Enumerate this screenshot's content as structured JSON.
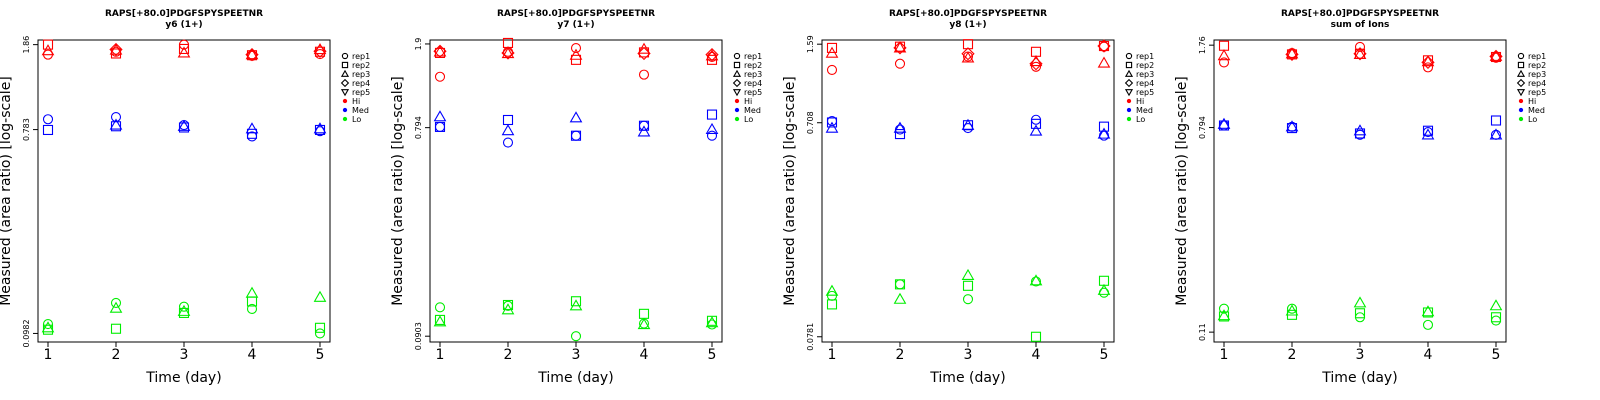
{
  "colors": {
    "Hi": "#ff0000",
    "Med": "#0000ff",
    "Lo": "#00ee00"
  },
  "legend": [
    {
      "label": "rep1",
      "shape": "circle"
    },
    {
      "label": "rep2",
      "shape": "square"
    },
    {
      "label": "rep3",
      "shape": "triangle-up"
    },
    {
      "label": "rep4",
      "shape": "diamond"
    },
    {
      "label": "rep5",
      "shape": "triangle-down"
    },
    {
      "label": "Hi",
      "shape": "dot",
      "color": "#ff0000"
    },
    {
      "label": "Med",
      "shape": "dot",
      "color": "#0000ff"
    },
    {
      "label": "Lo",
      "shape": "dot",
      "color": "#00ee00"
    }
  ],
  "chart_data": [
    {
      "type": "scatter",
      "title": "RAPS[+80.0]PDGFSPYSPEETNR",
      "subtitle": "y6 (1+)",
      "xlabel": "Time (day)",
      "ylabel": "Measured (area ratio) [log-scale]",
      "log_y": true,
      "x_ticks": [
        1,
        2,
        3,
        4,
        5
      ],
      "y_ticks": [
        {
          "value": 0.0982,
          "label": "0.0982"
        },
        {
          "value": 0.783,
          "label": "0.783"
        },
        {
          "value": 1.86,
          "label": "1.86"
        }
      ],
      "ylim": [
        0.09,
        1.95
      ],
      "x": [
        1,
        2,
        3,
        4,
        5
      ],
      "series": [
        {
          "group": "Hi",
          "rep": "rep1",
          "values": [
            1.68,
            1.73,
            1.86,
            1.66,
            1.69
          ]
        },
        {
          "group": "Hi",
          "rep": "rep2",
          "values": [
            1.86,
            1.7,
            1.78,
            1.67,
            1.73
          ]
        },
        {
          "group": "Hi",
          "rep": "rep3",
          "values": [
            1.75,
            1.76,
            1.71,
            1.68,
            1.77
          ]
        },
        {
          "group": "Hi",
          "rep": "rep4",
          "values": [
            null,
            1.77,
            null,
            1.68,
            1.74
          ]
        },
        {
          "group": "Med",
          "rep": "rep1",
          "values": [
            0.87,
            0.89,
            0.82,
            0.73,
            0.77
          ]
        },
        {
          "group": "Med",
          "rep": "rep2",
          "values": [
            0.78,
            0.81,
            0.8,
            0.75,
            0.78
          ]
        },
        {
          "group": "Med",
          "rep": "rep3",
          "values": [
            null,
            0.82,
            0.81,
            0.79,
            0.79
          ]
        },
        {
          "group": "Lo",
          "rep": "rep1",
          "values": [
            0.108,
            0.134,
            0.129,
            0.126,
            0.0982
          ]
        },
        {
          "group": "Lo",
          "rep": "rep2",
          "values": [
            0.102,
            0.103,
            0.121,
            0.136,
            0.104
          ]
        },
        {
          "group": "Lo",
          "rep": "rep3",
          "values": [
            0.104,
            0.127,
            0.123,
            0.148,
            0.142
          ]
        }
      ]
    },
    {
      "type": "scatter",
      "title": "RAPS[+80.0]PDGFSPYSPEETNR",
      "subtitle": "y7 (1+)",
      "xlabel": "Time (day)",
      "ylabel": "Measured (area ratio) [log-scale]",
      "log_y": true,
      "x_ticks": [
        1,
        2,
        3,
        4,
        5
      ],
      "y_ticks": [
        {
          "value": 0.0903,
          "label": "0.0903"
        },
        {
          "value": 0.794,
          "label": "0.794"
        },
        {
          "value": 1.9,
          "label": "1.9"
        }
      ],
      "ylim": [
        0.085,
        1.98
      ],
      "x": [
        1,
        2,
        3,
        4,
        5
      ],
      "series": [
        {
          "group": "Hi",
          "rep": "rep1",
          "values": [
            1.35,
            1.75,
            1.82,
            1.38,
            1.66
          ]
        },
        {
          "group": "Hi",
          "rep": "rep2",
          "values": [
            1.73,
            1.92,
            1.61,
            1.74,
            1.61
          ]
        },
        {
          "group": "Hi",
          "rep": "rep3",
          "values": [
            1.75,
            1.72,
            1.69,
            1.8,
            1.68
          ]
        },
        {
          "group": "Hi",
          "rep": "rep4",
          "values": [
            1.76,
            1.73,
            null,
            1.72,
            1.7
          ]
        },
        {
          "group": "Med",
          "rep": "rep1",
          "values": [
            0.8,
            0.68,
            0.73,
            0.81,
            0.73
          ]
        },
        {
          "group": "Med",
          "rep": "rep2",
          "values": [
            0.8,
            0.86,
            0.73,
            0.81,
            0.91
          ]
        },
        {
          "group": "Med",
          "rep": "rep3",
          "values": [
            0.89,
            0.77,
            0.88,
            0.76,
            0.78
          ]
        },
        {
          "group": "Lo",
          "rep": "rep1",
          "values": [
            0.122,
            0.124,
            0.0903,
            0.103,
            0.102
          ]
        },
        {
          "group": "Lo",
          "rep": "rep2",
          "values": [
            0.107,
            0.125,
            0.13,
            0.114,
            0.106
          ]
        },
        {
          "group": "Lo",
          "rep": "rep3",
          "values": [
            0.105,
            0.119,
            0.124,
            0.102,
            0.104
          ]
        }
      ]
    },
    {
      "type": "scatter",
      "title": "RAPS[+80.0]PDGFSPYSPEETNR",
      "subtitle": "y8 (1+)",
      "xlabel": "Time (day)",
      "ylabel": "Measured (area ratio) [log-scale]",
      "log_y": true,
      "x_ticks": [
        1,
        2,
        3,
        4,
        5
      ],
      "y_ticks": [
        {
          "value": 0.0781,
          "label": "0.0781"
        },
        {
          "value": 0.708,
          "label": "0.708"
        },
        {
          "value": 1.59,
          "label": "1.59"
        }
      ],
      "ylim": [
        0.074,
        1.66
      ],
      "x": [
        1,
        2,
        3,
        4,
        5
      ],
      "series": [
        {
          "group": "Hi",
          "rep": "rep1",
          "values": [
            1.22,
            1.3,
            1.4,
            1.26,
            1.55
          ]
        },
        {
          "group": "Hi",
          "rep": "rep2",
          "values": [
            1.53,
            1.55,
            1.59,
            1.47,
            1.56
          ]
        },
        {
          "group": "Hi",
          "rep": "rep3",
          "values": [
            1.45,
            1.53,
            1.38,
            1.33,
            1.31
          ]
        },
        {
          "group": "Hi",
          "rep": "rep4",
          "values": [
            null,
            1.53,
            1.44,
            1.3,
            1.56
          ]
        },
        {
          "group": "Med",
          "rep": "rep1",
          "values": [
            0.72,
            0.66,
            0.67,
            0.73,
            0.62
          ]
        },
        {
          "group": "Med",
          "rep": "rep2",
          "values": [
            0.71,
            0.63,
            0.69,
            0.7,
            0.68
          ]
        },
        {
          "group": "Med",
          "rep": "rep3",
          "values": [
            0.67,
            0.67,
            0.69,
            0.65,
            0.63
          ]
        },
        {
          "group": "Lo",
          "rep": "rep1",
          "values": [
            0.119,
            0.134,
            0.115,
            0.138,
            0.123
          ]
        },
        {
          "group": "Lo",
          "rep": "rep2",
          "values": [
            0.109,
            0.134,
            0.132,
            0.0781,
            0.139
          ]
        },
        {
          "group": "Lo",
          "rep": "rep3",
          "values": [
            0.125,
            0.115,
            0.147,
            0.139,
            0.126
          ]
        }
      ]
    },
    {
      "type": "scatter",
      "title": "RAPS[+80.0]PDGFSPYSPEETNR",
      "subtitle": "sum of Ions",
      "xlabel": "Time (day)",
      "ylabel": "Measured (area ratio) [log-scale]",
      "log_y": true,
      "x_ticks": [
        1,
        2,
        3,
        4,
        5
      ],
      "y_ticks": [
        {
          "value": 0.11,
          "label": "0.11"
        },
        {
          "value": 0.794,
          "label": "0.794"
        },
        {
          "value": 1.76,
          "label": "1.76"
        }
      ],
      "ylim": [
        0.1,
        1.85
      ],
      "x": [
        1,
        2,
        3,
        4,
        5
      ],
      "series": [
        {
          "group": "Hi",
          "rep": "rep1",
          "values": [
            1.49,
            1.63,
            1.73,
            1.42,
            1.56
          ]
        },
        {
          "group": "Hi",
          "rep": "rep2",
          "values": [
            1.75,
            1.61,
            1.62,
            1.52,
            1.57
          ]
        },
        {
          "group": "Hi",
          "rep": "rep3",
          "values": [
            1.59,
            1.62,
            1.61,
            1.5,
            1.58
          ]
        },
        {
          "group": "Hi",
          "rep": "rep4",
          "values": [
            null,
            1.61,
            1.62,
            1.49,
            1.58
          ]
        },
        {
          "group": "Med",
          "rep": "rep1",
          "values": [
            0.81,
            0.8,
            0.74,
            0.76,
            0.74
          ]
        },
        {
          "group": "Med",
          "rep": "rep2",
          "values": [
            0.81,
            0.79,
            0.75,
            0.77,
            0.85
          ]
        },
        {
          "group": "Med",
          "rep": "rep3",
          "values": [
            0.82,
            0.8,
            0.77,
            0.74,
            0.74
          ]
        },
        {
          "group": "Lo",
          "rep": "rep1",
          "values": [
            0.138,
            0.138,
            0.127,
            0.118,
            0.123
          ]
        },
        {
          "group": "Lo",
          "rep": "rep2",
          "values": [
            0.128,
            0.13,
            0.132,
            0.133,
            0.127
          ]
        },
        {
          "group": "Lo",
          "rep": "rep3",
          "values": [
            0.129,
            0.135,
            0.146,
            0.134,
            0.142
          ]
        }
      ]
    }
  ]
}
